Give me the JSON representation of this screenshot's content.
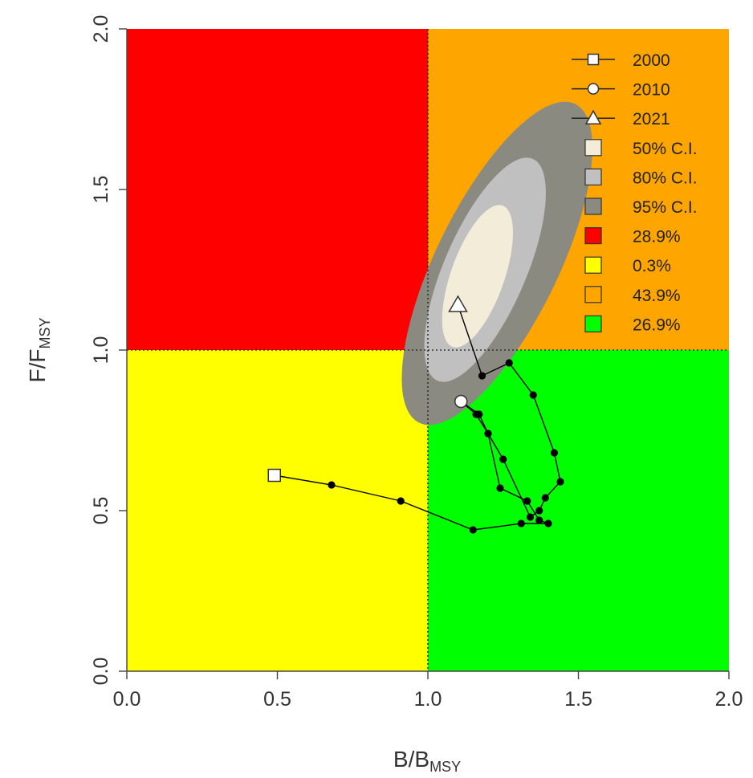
{
  "chart_data": {
    "type": "scatter",
    "subtype": "kobe-plot",
    "xlabel": {
      "main": "B",
      "sub": "MSY"
    },
    "ylabel": {
      "main": "F",
      "sub": "MSY"
    },
    "xlim": [
      0,
      2
    ],
    "ylim": [
      0,
      2
    ],
    "x_ticks": [
      "0.0",
      "0.5",
      "1.0",
      "1.5",
      "2.0"
    ],
    "y_ticks": [
      "0.0",
      "0.5",
      "1.0",
      "1.5",
      "2.0"
    ],
    "reference_lines": {
      "x": 1.0,
      "y": 1.0,
      "style": "dotted"
    },
    "quadrants": [
      {
        "name": "overfished-overfishing",
        "color": "#ff0000",
        "x": [
          0,
          1
        ],
        "y": [
          1,
          2
        ],
        "percent": "28.9%"
      },
      {
        "name": "overfished-no-overfishing",
        "color": "#ffff00",
        "x": [
          0,
          1
        ],
        "y": [
          0,
          1
        ],
        "percent": "0.3%"
      },
      {
        "name": "not-overfished-overfishing",
        "color": "#ffa500",
        "x": [
          1,
          2
        ],
        "y": [
          1,
          2
        ],
        "percent": "43.9%"
      },
      {
        "name": "not-overfished-no-overfishing",
        "color": "#00ff00",
        "x": [
          1,
          2
        ],
        "y": [
          0,
          1
        ],
        "percent": "26.9%"
      }
    ],
    "confidence_regions": [
      {
        "label": "95% C.I.",
        "color": "#8b8a80",
        "cx": 1.23,
        "cy": 1.27,
        "rx": 1.12,
        "ry": 0.2,
        "angle_deg": 62
      },
      {
        "label": "80% C.I.",
        "color": "#c0c0c0",
        "cx": 1.19,
        "cy": 1.25,
        "rx": 0.76,
        "ry": 0.135,
        "angle_deg": 65
      },
      {
        "label": "50% C.I.",
        "color": "#f3ecd8",
        "cx": 1.165,
        "cy": 1.23,
        "rx": 0.47,
        "ry": 0.088,
        "angle_deg": 69
      }
    ],
    "trajectory": {
      "points": [
        [
          0.49,
          0.61
        ],
        [
          0.68,
          0.58
        ],
        [
          0.91,
          0.53
        ],
        [
          1.15,
          0.44
        ],
        [
          1.31,
          0.46
        ],
        [
          1.4,
          0.46
        ],
        [
          1.37,
          0.47
        ],
        [
          1.33,
          0.53
        ],
        [
          1.24,
          0.57
        ],
        [
          1.2,
          0.74
        ],
        [
          1.16,
          0.8
        ],
        [
          1.11,
          0.84
        ],
        [
          1.17,
          0.8
        ],
        [
          1.2,
          0.74
        ],
        [
          1.25,
          0.66
        ],
        [
          1.34,
          0.48
        ],
        [
          1.37,
          0.5
        ],
        [
          1.39,
          0.54
        ],
        [
          1.44,
          0.59
        ],
        [
          1.42,
          0.68
        ],
        [
          1.35,
          0.86
        ],
        [
          1.27,
          0.96
        ],
        [
          1.18,
          0.92
        ],
        [
          1.1,
          1.14
        ]
      ],
      "start": {
        "label": "2000",
        "x": 0.49,
        "y": 0.61,
        "marker": "square"
      },
      "mid": {
        "label": "2010",
        "x": 1.11,
        "y": 0.84,
        "marker": "circle"
      },
      "end": {
        "label": "2021",
        "x": 1.1,
        "y": 1.14,
        "marker": "triangle"
      }
    },
    "legend": {
      "position": "top-right",
      "items": [
        {
          "kind": "line-square",
          "label": "2000"
        },
        {
          "kind": "line-circle",
          "label": "2010"
        },
        {
          "kind": "line-triangle",
          "label": "2021"
        },
        {
          "kind": "box",
          "color": "#f3ecd8",
          "label": "50% C.I."
        },
        {
          "kind": "box",
          "color": "#c0c0c0",
          "label": "80% C.I."
        },
        {
          "kind": "box",
          "color": "#8b8a80",
          "label": "95% C.I."
        },
        {
          "kind": "box",
          "color": "#ff0000",
          "label": "28.9%"
        },
        {
          "kind": "box",
          "color": "#ffff00",
          "label": "0.3%"
        },
        {
          "kind": "box",
          "color": "#ffa500",
          "label": "43.9%"
        },
        {
          "kind": "box",
          "color": "#00ff00",
          "label": "26.9%"
        }
      ]
    },
    "grid": false
  }
}
